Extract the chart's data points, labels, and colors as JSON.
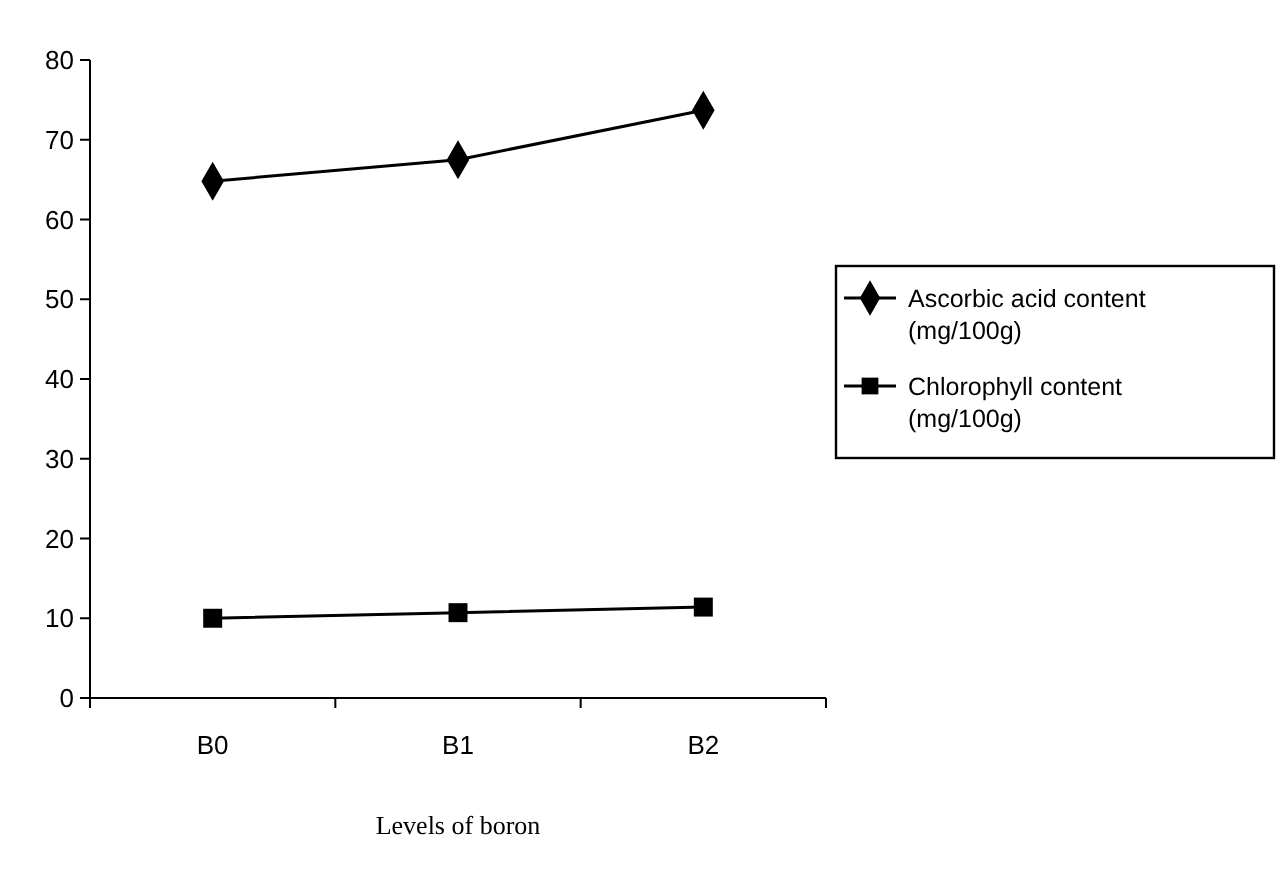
{
  "chart_data": {
    "type": "line",
    "xlabel": "Levels of boron",
    "categories": [
      "B0",
      "B1",
      "B2"
    ],
    "series": [
      {
        "name": "Ascorbic acid content (mg/100g)",
        "color": "#000000",
        "marker": "diamond",
        "values": [
          64.8,
          67.5,
          73.7
        ]
      },
      {
        "name": "Chlorophyll content (mg/100g)",
        "color": "#000000",
        "marker": "square",
        "values": [
          10.0,
          10.7,
          11.4
        ]
      }
    ],
    "ylim": [
      0,
      80
    ],
    "yticks": [
      0,
      10,
      20,
      30,
      40,
      50,
      60,
      70,
      80
    ],
    "grid": false,
    "legend": "right",
    "line_style": "solid"
  }
}
